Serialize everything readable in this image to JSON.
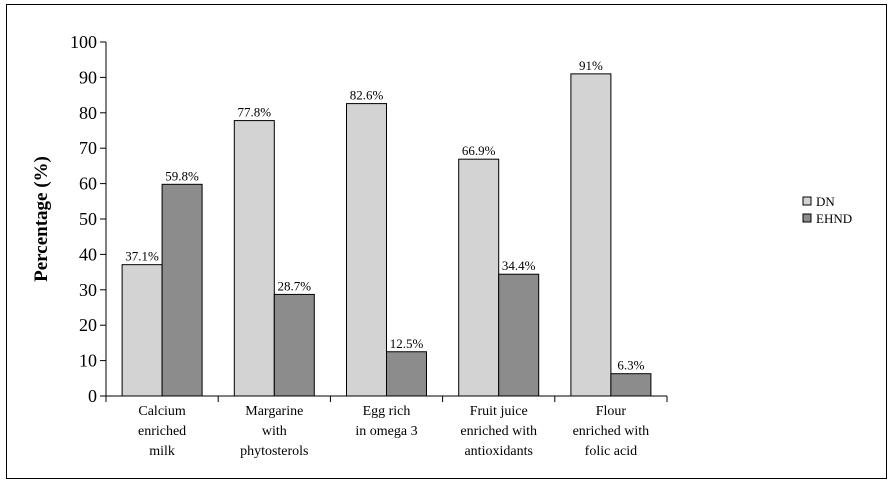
{
  "chart_data": {
    "type": "bar",
    "categories": [
      [
        "Calcium",
        "enriched",
        "milk"
      ],
      [
        "Margarine",
        "with",
        "phytosterols"
      ],
      [
        "Egg rich",
        "in omega 3"
      ],
      [
        "Fruit juice",
        "enriched with",
        "antioxidants"
      ],
      [
        "Flour",
        "enriched with",
        "folic acid"
      ]
    ],
    "series": [
      {
        "name": "DN",
        "color": "#d3d3d3",
        "values": [
          37.1,
          77.8,
          82.6,
          66.9,
          91
        ],
        "labels": [
          "37.1%",
          "77.8%",
          "82.6%",
          "66.9%",
          "91%"
        ]
      },
      {
        "name": "EHND",
        "color": "#8c8c8c",
        "values": [
          59.8,
          28.7,
          12.5,
          34.4,
          6.3
        ],
        "labels": [
          "59.8%",
          "28.7%",
          "12.5%",
          "34.4%",
          "6.3%"
        ]
      }
    ],
    "ylabel": "Percentage (%)",
    "xlabel": "",
    "ylim": [
      0,
      100
    ],
    "yticks": [
      0,
      10,
      20,
      30,
      40,
      50,
      60,
      70,
      80,
      90,
      100
    ],
    "grid": false,
    "legend": "right"
  }
}
